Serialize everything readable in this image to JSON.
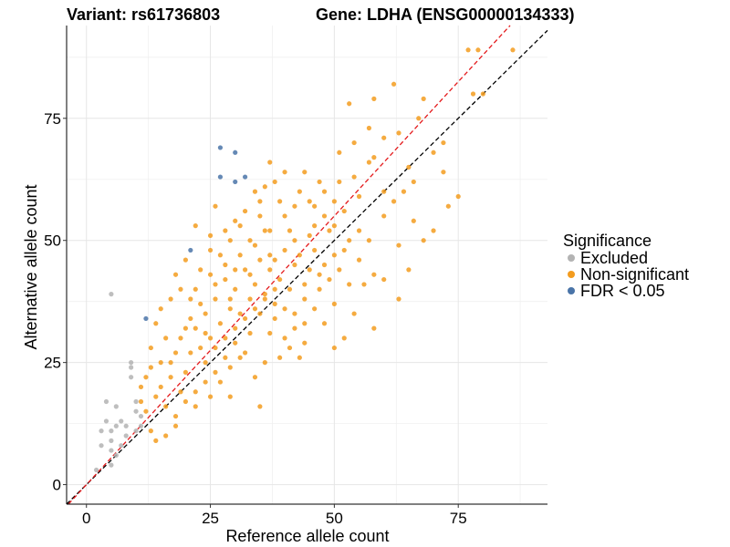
{
  "chart_data": {
    "type": "scatter",
    "title_left": "Variant: rs61736803",
    "title_right": "Gene: LDHA (ENSG00000134333)",
    "xlabel": "Reference allele count",
    "ylabel": "Alternative allele count",
    "xlim": [
      -4,
      93
    ],
    "ylim": [
      -4,
      94
    ],
    "xticks": [
      0,
      25,
      50,
      75
    ],
    "yticks": [
      0,
      25,
      50,
      75
    ],
    "grid": true,
    "legend": {
      "title": "Significance",
      "position": "right",
      "entries": [
        {
          "label": "Excluded",
          "color": "#b3b3b3"
        },
        {
          "label": "Non-significant",
          "color": "#f39c1f"
        },
        {
          "label": "FDR < 0.05",
          "color": "#4a74a8"
        }
      ]
    },
    "reference_lines": [
      {
        "name": "identity",
        "slope": 1,
        "intercept": 0,
        "color": "#000000",
        "style": "dashed"
      },
      {
        "name": "fit",
        "slope": 1.1,
        "intercept": 0,
        "color": "#e41a1c",
        "style": "dashed"
      }
    ],
    "series": [
      {
        "name": "Excluded",
        "color": "#b3b3b3",
        "points": [
          [
            5,
            39
          ],
          [
            2,
            3
          ],
          [
            3,
            8
          ],
          [
            3,
            11
          ],
          [
            4,
            13
          ],
          [
            4,
            17
          ],
          [
            5,
            4
          ],
          [
            5,
            7
          ],
          [
            5,
            9
          ],
          [
            5,
            11
          ],
          [
            6,
            6
          ],
          [
            6,
            12
          ],
          [
            6,
            16
          ],
          [
            7,
            8
          ],
          [
            7,
            13
          ],
          [
            8,
            10
          ],
          [
            8,
            12
          ],
          [
            9,
            22
          ],
          [
            9,
            24
          ],
          [
            9,
            25
          ],
          [
            10,
            11
          ],
          [
            10,
            15
          ],
          [
            10,
            17
          ],
          [
            11,
            12
          ],
          [
            11,
            14
          ]
        ]
      },
      {
        "name": "FDR < 0.05",
        "color": "#4a74a8",
        "points": [
          [
            27,
            69
          ],
          [
            30,
            68
          ],
          [
            27,
            63
          ],
          [
            30,
            62
          ],
          [
            32,
            63
          ],
          [
            21,
            48
          ],
          [
            12,
            34
          ]
        ]
      },
      {
        "name": "Non-significant",
        "color": "#f39c1f",
        "points": [
          [
            77,
            89
          ],
          [
            79,
            89
          ],
          [
            86,
            89
          ],
          [
            78,
            80
          ],
          [
            80,
            80
          ],
          [
            53,
            78
          ],
          [
            58,
            79
          ],
          [
            62,
            82
          ],
          [
            68,
            79
          ],
          [
            57,
            73
          ],
          [
            60,
            71
          ],
          [
            57,
            66
          ],
          [
            54,
            70
          ],
          [
            51,
            68
          ],
          [
            37,
            66
          ],
          [
            40,
            64
          ],
          [
            38,
            62
          ],
          [
            36,
            61
          ],
          [
            34,
            60
          ],
          [
            43,
            60
          ],
          [
            47,
            62
          ],
          [
            48,
            60
          ],
          [
            46,
            57
          ],
          [
            52,
            56
          ],
          [
            50,
            53
          ],
          [
            60,
            55
          ],
          [
            66,
            54
          ],
          [
            73,
            57
          ],
          [
            72,
            64
          ],
          [
            75,
            59
          ],
          [
            70,
            52
          ],
          [
            68,
            50
          ],
          [
            63,
            49
          ],
          [
            55,
            46
          ],
          [
            58,
            43
          ],
          [
            56,
            41
          ],
          [
            65,
            44
          ],
          [
            60,
            42
          ],
          [
            63,
            38
          ],
          [
            58,
            32
          ],
          [
            52,
            30
          ],
          [
            50,
            37
          ],
          [
            47,
            43
          ],
          [
            45,
            51
          ],
          [
            42,
            45
          ],
          [
            40,
            48
          ],
          [
            44,
            38
          ],
          [
            38,
            40
          ],
          [
            35,
            46
          ],
          [
            33,
            50
          ],
          [
            30,
            54
          ],
          [
            28,
            52
          ],
          [
            26,
            57
          ],
          [
            22,
            53
          ],
          [
            25,
            51
          ],
          [
            20,
            46
          ],
          [
            18,
            43
          ],
          [
            19,
            40
          ],
          [
            17,
            38
          ],
          [
            15,
            36
          ],
          [
            14,
            33
          ],
          [
            16,
            30
          ],
          [
            13,
            28
          ],
          [
            13,
            24
          ],
          [
            11,
            20
          ],
          [
            11,
            17
          ],
          [
            12,
            22
          ],
          [
            12,
            15
          ],
          [
            13,
            11
          ],
          [
            14,
            18
          ],
          [
            15,
            20
          ],
          [
            16,
            16
          ],
          [
            17,
            25
          ],
          [
            18,
            14
          ],
          [
            19,
            19
          ],
          [
            20,
            23
          ],
          [
            21,
            27
          ],
          [
            22,
            32
          ],
          [
            23,
            28
          ],
          [
            24,
            35
          ],
          [
            25,
            30
          ],
          [
            26,
            38
          ],
          [
            27,
            33
          ],
          [
            28,
            42
          ],
          [
            29,
            36
          ],
          [
            30,
            40
          ],
          [
            31,
            35
          ],
          [
            32,
            44
          ],
          [
            33,
            38
          ],
          [
            34,
            41
          ],
          [
            35,
            35
          ],
          [
            36,
            39
          ],
          [
            37,
            44
          ],
          [
            38,
            37
          ],
          [
            39,
            42
          ],
          [
            40,
            36
          ],
          [
            41,
            40
          ],
          [
            42,
            35
          ],
          [
            43,
            47
          ],
          [
            44,
            41
          ],
          [
            45,
            44
          ],
          [
            46,
            48
          ],
          [
            47,
            40
          ],
          [
            48,
            45
          ],
          [
            49,
            42
          ],
          [
            50,
            47
          ],
          [
            51,
            44
          ],
          [
            53,
            50
          ],
          [
            55,
            52
          ],
          [
            24,
            25
          ],
          [
            26,
            28
          ],
          [
            28,
            30
          ],
          [
            30,
            32
          ],
          [
            32,
            34
          ],
          [
            34,
            36
          ],
          [
            36,
            38
          ],
          [
            38,
            34
          ],
          [
            40,
            30
          ],
          [
            42,
            32
          ],
          [
            44,
            29
          ],
          [
            36,
            25
          ],
          [
            34,
            22
          ],
          [
            32,
            27
          ],
          [
            30,
            29
          ],
          [
            28,
            26
          ],
          [
            26,
            23
          ],
          [
            24,
            21
          ],
          [
            22,
            19
          ],
          [
            20,
            17
          ],
          [
            18,
            12
          ],
          [
            16,
            10
          ],
          [
            14,
            9
          ],
          [
            22,
            16
          ],
          [
            25,
            18
          ],
          [
            27,
            21
          ],
          [
            29,
            24
          ],
          [
            31,
            26
          ],
          [
            33,
            31
          ],
          [
            35,
            16
          ],
          [
            29,
            18
          ],
          [
            24,
            31
          ],
          [
            21,
            34
          ],
          [
            19,
            30
          ],
          [
            17,
            22
          ],
          [
            15,
            25
          ],
          [
            22,
            40
          ],
          [
            25,
            43
          ],
          [
            28,
            45
          ],
          [
            31,
            47
          ],
          [
            34,
            49
          ],
          [
            37,
            52
          ],
          [
            40,
            55
          ],
          [
            42,
            57
          ],
          [
            45,
            58
          ],
          [
            48,
            55
          ],
          [
            35,
            55
          ],
          [
            39,
            58
          ],
          [
            44,
            64
          ],
          [
            41,
            52
          ],
          [
            37,
            47
          ],
          [
            33,
            43
          ],
          [
            29,
            38
          ],
          [
            26,
            41
          ],
          [
            23,
            37
          ],
          [
            20,
            32
          ],
          [
            18,
            27
          ],
          [
            60,
            60
          ],
          [
            62,
            58
          ],
          [
            64,
            60
          ],
          [
            66,
            62
          ],
          [
            70,
            68
          ],
          [
            72,
            70
          ],
          [
            65,
            65
          ],
          [
            55,
            59
          ],
          [
            52,
            48
          ],
          [
            49,
            52
          ],
          [
            57,
            50
          ],
          [
            42,
            50
          ],
          [
            38,
            46
          ],
          [
            30,
            44
          ],
          [
            27,
            47
          ],
          [
            32,
            56
          ],
          [
            29,
            50
          ],
          [
            36,
            52
          ],
          [
            23,
            44
          ],
          [
            21,
            38
          ],
          [
            46,
            36
          ],
          [
            48,
            33
          ],
          [
            50,
            28
          ],
          [
            54,
            35
          ],
          [
            44,
            33
          ],
          [
            41,
            28
          ],
          [
            39,
            26
          ],
          [
            37,
            31
          ],
          [
            43,
            26
          ],
          [
            53,
            41
          ],
          [
            25,
            48
          ],
          [
            31,
            53
          ],
          [
            35,
            58
          ],
          [
            46,
            53
          ],
          [
            50,
            58
          ],
          [
            51,
            62
          ],
          [
            54,
            63
          ],
          [
            58,
            67
          ],
          [
            63,
            72
          ],
          [
            67,
            75
          ]
        ]
      }
    ]
  }
}
